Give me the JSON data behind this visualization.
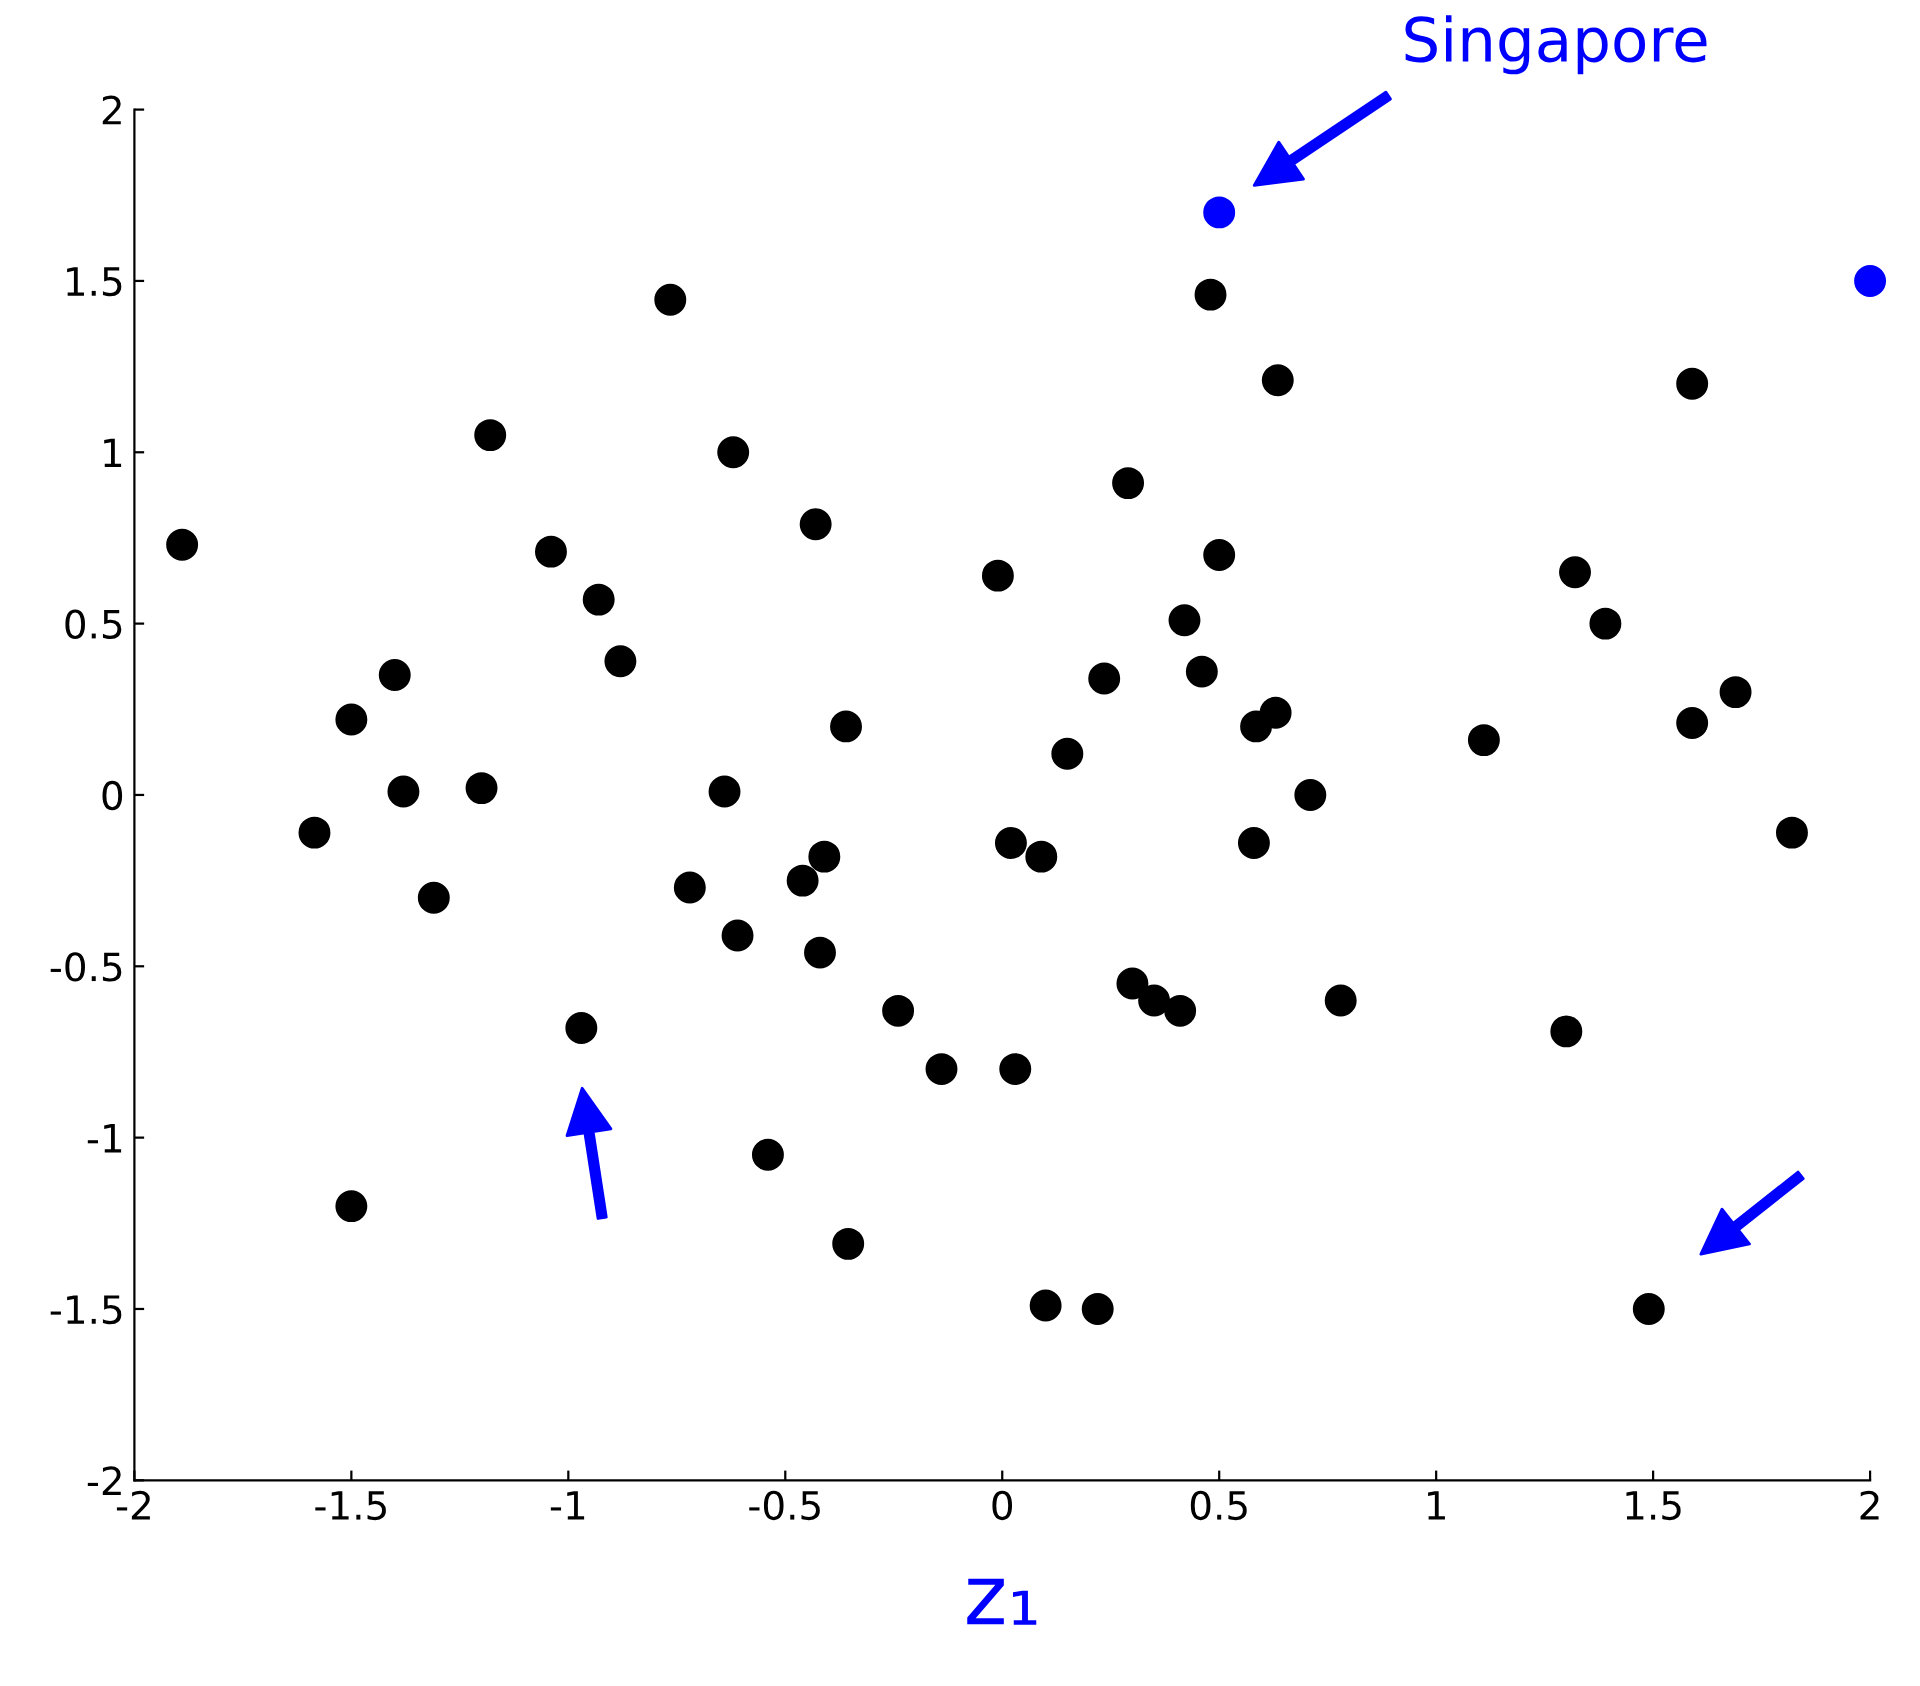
{
  "chart_data": {
    "type": "scatter",
    "xlabel": "z₁",
    "xlim": [
      -2,
      2
    ],
    "ylim": [
      -2,
      2
    ],
    "xticks": [
      -2,
      -1.5,
      -1,
      -0.5,
      0,
      0.5,
      1,
      1.5,
      2
    ],
    "yticks": [
      -2,
      -1.5,
      -1,
      -0.5,
      0,
      0.5,
      1,
      1.5,
      2
    ],
    "grid": false,
    "marker": "circle",
    "series": [
      {
        "color": "#000000",
        "x": [
          -1.89,
          -1.585,
          -1.5,
          -1.5,
          -1.4,
          -1.38,
          -1.31,
          -1.2,
          -1.18,
          -1.04,
          -0.97,
          -0.93,
          -0.88,
          -0.765,
          -0.72,
          -0.64,
          -0.62,
          -0.61,
          -0.54,
          -0.46,
          -0.43,
          -0.42,
          -0.41,
          -0.36,
          -0.355,
          -0.24,
          -0.14,
          -0.01,
          0.02,
          0.03,
          0.09,
          0.1,
          0.15,
          0.22,
          0.235,
          0.29,
          0.3,
          0.35,
          0.41,
          0.42,
          0.46,
          0.48,
          0.5,
          0.58,
          0.585,
          0.63,
          0.635,
          0.71,
          0.78,
          1.11,
          1.3,
          1.32,
          1.39,
          1.49,
          1.59,
          1.59,
          1.69,
          1.82
        ],
        "values": [
          0.73,
          -0.11,
          0.22,
          -1.2,
          0.35,
          0.01,
          -0.3,
          0.02,
          1.05,
          0.71,
          -0.68,
          0.57,
          0.39,
          1.445,
          -0.27,
          0.01,
          1.0,
          -0.41,
          -1.05,
          -0.25,
          0.79,
          -0.46,
          -0.18,
          0.2,
          -1.31,
          -0.63,
          -0.8,
          0.64,
          -0.14,
          -0.8,
          -0.18,
          -1.49,
          0.12,
          -1.5,
          0.34,
          0.91,
          -0.55,
          -0.6,
          -0.63,
          0.51,
          0.36,
          1.46,
          0.7,
          -0.14,
          0.2,
          0.24,
          1.21,
          0.0,
          -0.6,
          0.16,
          -0.69,
          0.65,
          0.5,
          -1.5,
          1.2,
          0.21,
          0.3,
          -0.11
        ]
      },
      {
        "color": "#0000ff",
        "x": [
          0.5,
          2.0
        ],
        "values": [
          1.7,
          1.5
        ]
      }
    ],
    "annotations": [
      "Singapore"
    ]
  }
}
